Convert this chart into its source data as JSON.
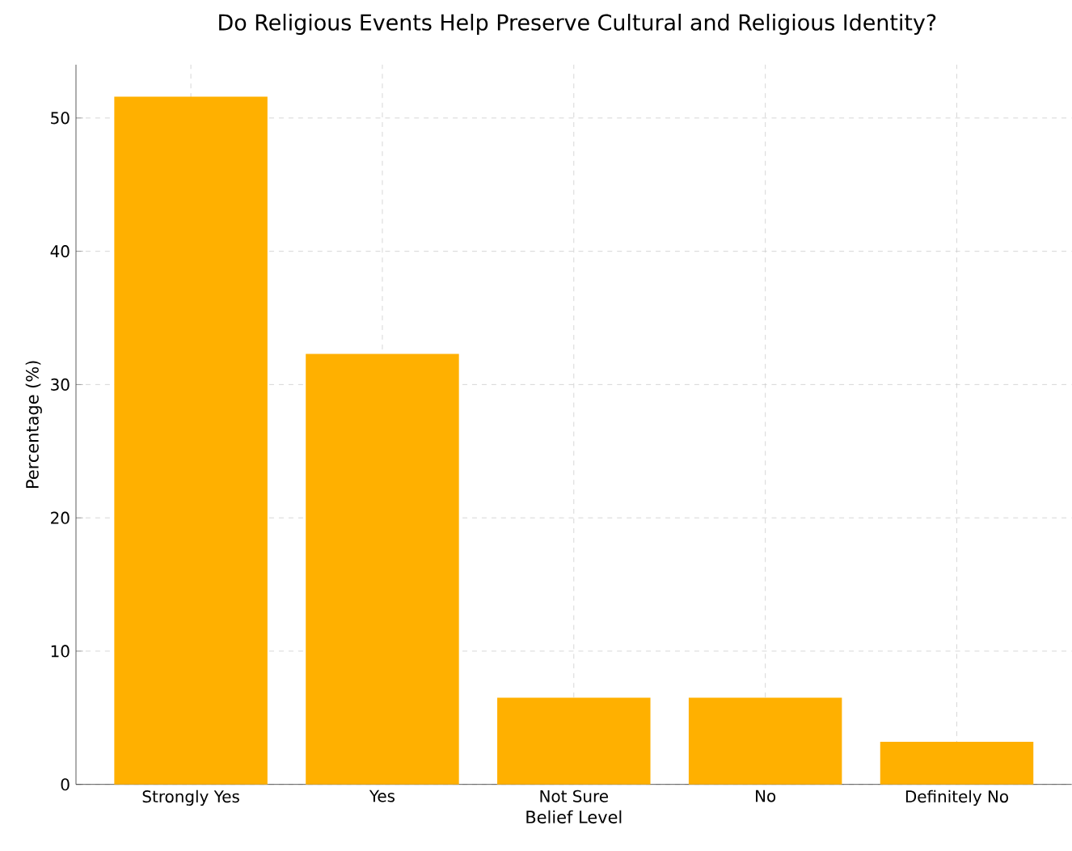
{
  "chart_data": {
    "type": "bar",
    "title": "Do Religious Events Help Preserve Cultural and Religious Identity?",
    "xlabel": "Belief Level",
    "ylabel": "Percentage (%)",
    "categories": [
      "Strongly Yes",
      "Yes",
      "Not Sure",
      "No",
      "Definitely No"
    ],
    "values": [
      51.6,
      32.3,
      6.5,
      6.5,
      3.2
    ],
    "color": "#ffb000",
    "ylim": [
      0,
      54
    ],
    "yticks": [
      0,
      10,
      20,
      30,
      40,
      50
    ],
    "grid": true
  }
}
